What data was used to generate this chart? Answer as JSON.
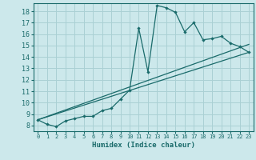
{
  "xlabel": "Humidex (Indice chaleur)",
  "bg_color": "#cce8eb",
  "grid_color": "#aad0d4",
  "line_color": "#1a6b6b",
  "xlim": [
    -0.5,
    23.5
  ],
  "ylim": [
    7.5,
    18.7
  ],
  "xticks": [
    0,
    1,
    2,
    3,
    4,
    5,
    6,
    7,
    8,
    9,
    10,
    11,
    12,
    13,
    14,
    15,
    16,
    17,
    18,
    19,
    20,
    21,
    22,
    23
  ],
  "yticks": [
    8,
    9,
    10,
    11,
    12,
    13,
    14,
    15,
    16,
    17,
    18
  ],
  "main_line_x": [
    0,
    1,
    2,
    3,
    4,
    5,
    6,
    7,
    8,
    9,
    10,
    11,
    12,
    13,
    14,
    15,
    16,
    17,
    18,
    19,
    20,
    21,
    22,
    23
  ],
  "main_line_y": [
    8.5,
    8.1,
    7.9,
    8.4,
    8.6,
    8.8,
    8.8,
    9.3,
    9.5,
    10.3,
    11.1,
    16.5,
    12.7,
    18.5,
    18.3,
    17.9,
    16.2,
    17.0,
    15.5,
    15.6,
    15.8,
    15.2,
    14.9,
    14.4
  ],
  "line2_x": [
    0,
    23
  ],
  "line2_y": [
    8.5,
    14.4
  ],
  "line3_x": [
    0,
    23
  ],
  "line3_y": [
    8.5,
    15.1
  ]
}
